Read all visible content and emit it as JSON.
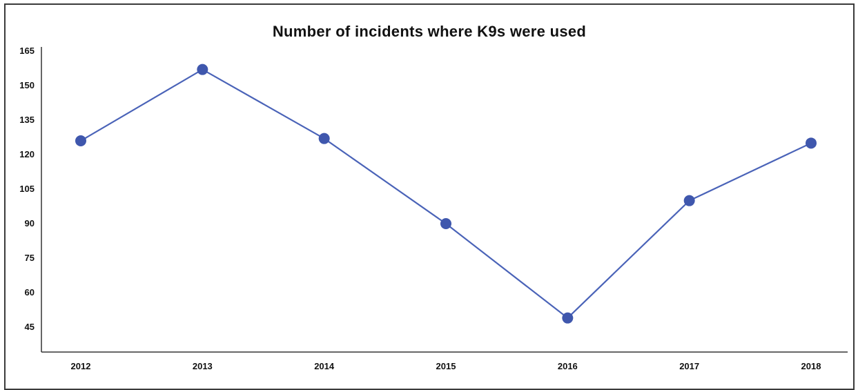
{
  "chart_data": {
    "type": "line",
    "title": "Number of incidents where K9s were used",
    "xlabel": "",
    "ylabel": "",
    "categories": [
      "2012",
      "2013",
      "2014",
      "2015",
      "2016",
      "2017",
      "2018"
    ],
    "series": [
      {
        "values": [
          126,
          157,
          127,
          90,
          49,
          100,
          125
        ],
        "color": "#4a63b8"
      }
    ],
    "y_ticks": [
      45,
      60,
      75,
      90,
      105,
      120,
      135,
      150,
      165
    ],
    "ylim": [
      33,
      168
    ],
    "grid": false,
    "legend": "none"
  }
}
